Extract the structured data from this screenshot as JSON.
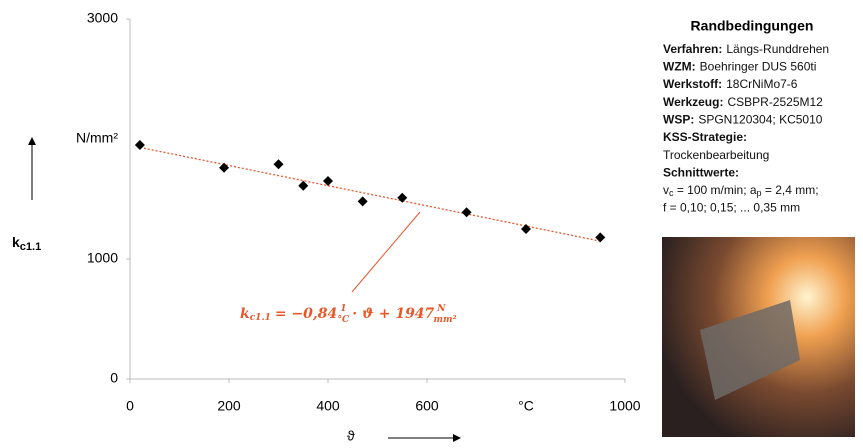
{
  "chart_data": {
    "type": "scatter",
    "series": [
      {
        "color": "#000000",
        "x": [
          20,
          190,
          300,
          350,
          400,
          470,
          550,
          680,
          800,
          950
        ],
        "values": [
          1950,
          1760,
          1790,
          1610,
          1650,
          1480,
          1510,
          1390,
          1250,
          1180
        ]
      }
    ],
    "xlim": [
      0,
      1000
    ],
    "ylim": [
      0,
      3000
    ],
    "xticks": [
      0,
      200,
      400,
      600,
      1000
    ],
    "yticks": [
      0,
      1000,
      3000
    ],
    "x_unit": {
      "value": 800,
      "label": "°C"
    },
    "y_unit": {
      "value": 2000,
      "label": "N/mm²"
    },
    "xlabel": "ϑ",
    "ylabel": {
      "main": "k",
      "sub": "c1.1"
    },
    "trendline": {
      "slope": -0.84,
      "intercept": 1947,
      "color": "#e8572a"
    },
    "equation": {
      "lhs": "k",
      "lhs_sub": "c1.1",
      "part1": "= −0,84",
      "f1_num": "1",
      "f1_den": "°C",
      "part2": "· ϑ + 1947",
      "f2_num": "N",
      "f2_den": "mm²"
    },
    "grid": false
  },
  "panel": {
    "title": "Randbedingungen",
    "conditions": [
      {
        "label": "Verfahren:",
        "text": "Längs-Runddrehen"
      },
      {
        "label": "WZM:",
        "text": "Boehringer DUS 560ti"
      },
      {
        "label": "Werkstoff:",
        "text": "18CrNiMo7-6"
      },
      {
        "label": "Werkzeug:",
        "text": "CSBPR-2525M12"
      },
      {
        "label": "WSP:",
        "text": "SPGN120304; KC5010"
      }
    ],
    "kss_label": "KSS-Strategie:",
    "kss_text": "Trockenbearbeitung",
    "cut_label": "Schnittwerte:",
    "cut_line": [
      "v",
      "c",
      " = 100 m/min; a",
      "p",
      " = 2,4 mm;"
    ],
    "feed_line": "f = 0,10; 0,15; ... 0,35 mm"
  }
}
